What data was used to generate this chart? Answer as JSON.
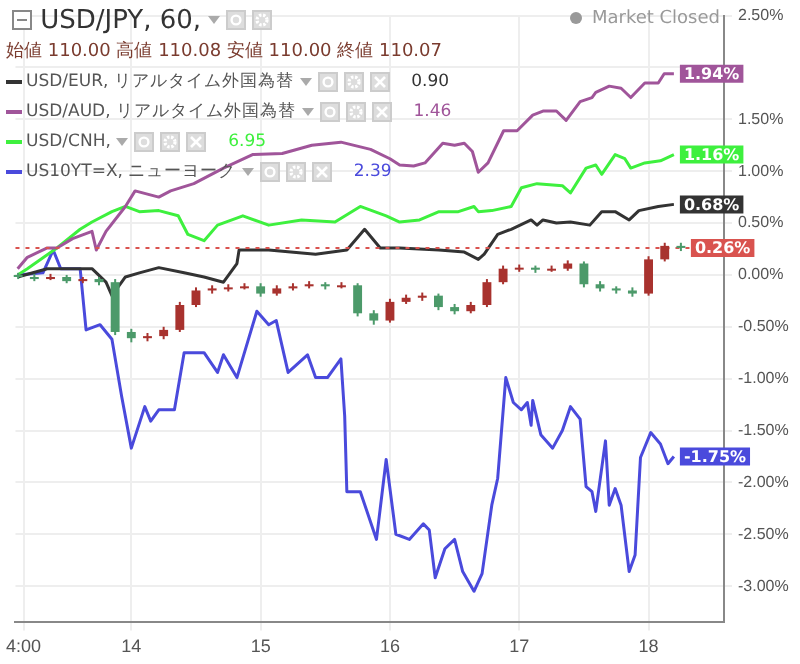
{
  "chart_data": {
    "type": "candlestick",
    "title": "USD/JPY, 60,",
    "subtitle": "始値 110.00 高値 110.08 安値 110.00 終値 110.07",
    "annotations": [
      "0.90",
      "1.46",
      "6.95",
      "2.39",
      "Market Closed"
    ],
    "xlim": [
      "--01-13T02:30",
      "--01-18T14:00"
    ],
    "xticks": [
      {
        "value": "--01-13T04:00",
        "label": "4:00"
      },
      {
        "value": "--01-14T00:00",
        "label": "14"
      },
      {
        "value": "--01-15T00:00",
        "label": "15"
      },
      {
        "value": "--01-16T00:00",
        "label": "16"
      },
      {
        "value": "--01-17T00:00",
        "label": "17"
      },
      {
        "value": "--01-18T00:00",
        "label": "18"
      }
    ],
    "ylim": [
      -3.35,
      2.5
    ],
    "yticks": [
      {
        "value": 2.5,
        "label": "2.50%"
      },
      {
        "value": 2,
        "label": null
      },
      {
        "value": 1.5,
        "label": "1.50%"
      },
      {
        "value": 1,
        "label": "1.00%"
      },
      {
        "value": 0.5,
        "label": "0.50%"
      },
      {
        "value": 0,
        "label": "0.00%"
      },
      {
        "value": -0.5,
        "label": "-0.50%"
      },
      {
        "value": -1,
        "label": "-1.00%"
      },
      {
        "value": -1.5,
        "label": "-1.50%"
      },
      {
        "value": -2,
        "label": "-2.00%"
      },
      {
        "value": -2.5,
        "label": "-2.50%"
      },
      {
        "value": -3,
        "label": "-3.00%"
      }
    ],
    "grid": true,
    "legend": "top left",
    "marker": "none",
    "line_style": "solid",
    "ref_lines": [
      {
        "axis": "y",
        "value": 0.26,
        "color": "#d9534f",
        "line_style": "dotted"
      }
    ],
    "series": [
      {
        "type": "candlestick",
        "color": "#d9534f",
        "x": [
          "--01-13T03:00",
          "--01-13T06:00",
          "--01-13T09:00",
          "--01-13T12:00",
          "--01-13T15:00",
          "--01-13T18:00",
          "--01-13T21:00",
          "--01-14T00:00",
          "--01-14T03:00",
          "--01-14T06:00",
          "--01-14T09:00",
          "--01-14T12:00",
          "--01-14T15:00",
          "--01-14T18:00",
          "--01-14T21:00",
          "--01-15T00:00",
          "--01-15T03:00",
          "--01-15T06:00",
          "--01-15T09:00",
          "--01-15T12:00",
          "--01-15T15:00",
          "--01-15T18:00",
          "--01-15T21:00",
          "--01-16T00:00",
          "--01-16T03:00",
          "--01-16T06:00",
          "--01-16T09:00",
          "--01-16T12:00",
          "--01-16T15:00",
          "--01-16T18:00",
          "--01-16T21:00",
          "--01-17T00:00",
          "--01-17T03:00",
          "--01-17T06:00",
          "--01-17T09:00",
          "--01-17T12:00",
          "--01-17T15:00",
          "--01-17T18:00",
          "--01-17T21:00",
          "--01-18T00:00",
          "--01-18T03:00",
          "--01-18T06:00"
        ],
        "ohlc": [
          [
            0,
            0.02,
            -0.04,
            -0.02
          ],
          [
            -0.02,
            0.01,
            -0.06,
            -0.04
          ],
          [
            -0.04,
            0.01,
            -0.05,
            -0.02
          ],
          [
            -0.02,
            0,
            -0.08,
            -0.06
          ],
          [
            -0.06,
            -0.02,
            -0.08,
            -0.04
          ],
          [
            -0.04,
            -0.02,
            -0.1,
            -0.07
          ],
          [
            -0.07,
            -0.04,
            -0.58,
            -0.55
          ],
          [
            -0.55,
            -0.52,
            -0.65,
            -0.61
          ],
          [
            -0.61,
            -0.56,
            -0.64,
            -0.59
          ],
          [
            -0.59,
            -0.5,
            -0.62,
            -0.53
          ],
          [
            -0.53,
            -0.26,
            -0.55,
            -0.29
          ],
          [
            -0.29,
            -0.12,
            -0.31,
            -0.15
          ],
          [
            -0.15,
            -0.1,
            -0.18,
            -0.13
          ],
          [
            -0.13,
            -0.09,
            -0.16,
            -0.12
          ],
          [
            -0.12,
            -0.08,
            -0.14,
            -0.11
          ],
          [
            -0.11,
            -0.08,
            -0.21,
            -0.18
          ],
          [
            -0.18,
            -0.1,
            -0.2,
            -0.13
          ],
          [
            -0.13,
            -0.08,
            -0.15,
            -0.11
          ],
          [
            -0.11,
            -0.06,
            -0.13,
            -0.09
          ],
          [
            -0.09,
            -0.07,
            -0.14,
            -0.11
          ],
          [
            -0.11,
            -0.07,
            -0.13,
            -0.1
          ],
          [
            -0.1,
            -0.08,
            -0.4,
            -0.37
          ],
          [
            -0.37,
            -0.34,
            -0.48,
            -0.44
          ],
          [
            -0.44,
            -0.23,
            -0.46,
            -0.26
          ],
          [
            -0.26,
            -0.19,
            -0.28,
            -0.22
          ],
          [
            -0.22,
            -0.17,
            -0.25,
            -0.2
          ],
          [
            -0.2,
            -0.18,
            -0.34,
            -0.31
          ],
          [
            -0.31,
            -0.28,
            -0.38,
            -0.35
          ],
          [
            -0.35,
            -0.26,
            -0.37,
            -0.29
          ],
          [
            -0.29,
            -0.04,
            -0.31,
            -0.07
          ],
          [
            -0.07,
            0.09,
            -0.09,
            0.06
          ],
          [
            0.06,
            0.1,
            0.03,
            0.07
          ],
          [
            0.07,
            0.09,
            0.02,
            0.05
          ],
          [
            0.05,
            0.09,
            0.03,
            0.06
          ],
          [
            0.06,
            0.14,
            0.04,
            0.11
          ],
          [
            0.11,
            0.13,
            -0.12,
            -0.09
          ],
          [
            -0.09,
            -0.06,
            -0.16,
            -0.13
          ],
          [
            -0.13,
            -0.11,
            -0.18,
            -0.15
          ],
          [
            -0.15,
            -0.12,
            -0.21,
            -0.18
          ],
          [
            -0.18,
            0.18,
            -0.2,
            0.15
          ],
          [
            0.15,
            0.31,
            0.13,
            0.28
          ],
          [
            0.28,
            0.31,
            0.23,
            0.26
          ]
        ],
        "colors": [
          "#4c9a6a",
          "#4c9a6a",
          "#a8322e",
          "#4c9a6a",
          "#a8322e",
          "#4c9a6a",
          "#4c9a6a",
          "#4c9a6a",
          "#a8322e",
          "#a8322e",
          "#a8322e",
          "#a8322e",
          "#a8322e",
          "#a8322e",
          "#a8322e",
          "#4c9a6a",
          "#a8322e",
          "#a8322e",
          "#a8322e",
          "#4c9a6a",
          "#a8322e",
          "#4c9a6a",
          "#4c9a6a",
          "#a8322e",
          "#a8322e",
          "#a8322e",
          "#4c9a6a",
          "#4c9a6a",
          "#a8322e",
          "#a8322e",
          "#a8322e",
          "#a8322e",
          "#4c9a6a",
          "#a8322e",
          "#a8322e",
          "#4c9a6a",
          "#4c9a6a",
          "#4c9a6a",
          "#4c9a6a",
          "#a8322e",
          "#a8322e",
          "#4c9a6a"
        ],
        "value_labels": [
          null,
          null,
          null,
          null,
          null,
          null,
          null,
          null,
          null,
          null,
          null,
          null,
          null,
          null,
          null,
          null,
          null,
          null,
          null,
          null,
          null,
          null,
          null,
          null,
          null,
          null,
          null,
          null,
          null,
          null,
          null,
          null,
          null,
          null,
          null,
          null,
          null,
          null,
          null,
          null,
          null,
          "0.26%"
        ]
      },
      {
        "type": "line",
        "name": "USD/EUR, リアルタイム外国為替",
        "color": "#333333",
        "x": [
          "--01-13T02:54",
          "--01-13T08:24",
          "--01-13T14:30",
          "--01-13T16:42",
          "--01-13T19:18",
          "--01-13T20:24",
          "--01-13T22:54",
          "--01-14T01:30",
          "--01-14T05:06",
          "--01-14T09:48",
          "--01-14T13:30",
          "--01-14T17:06",
          "--01-14T19:36",
          "--01-14T20:00",
          "--01-15T01:30",
          "--01-15T10:12",
          "--01-15T16:00",
          "--01-15T19:18",
          "--01-15T22:12",
          "--01-16T01:48",
          "--01-16T09:06",
          "--01-16T13:48",
          "--01-16T16:24",
          "--01-16T17:30",
          "--01-16T20:00",
          "--01-16T22:30",
          "--01-17T02:12",
          "--01-17T03:18",
          "--01-17T04:24",
          "--01-17T06:54",
          "--01-17T09:30",
          "--01-17T13:06",
          "--01-17T15:18",
          "--01-17T17:48",
          "--01-17T20:24",
          "--01-17T22:12",
          "--01-18T01:48",
          "--01-18T04:42"
        ],
        "values": [
          -0.02,
          0.06,
          0.06,
          0.06,
          -0.07,
          -0.2,
          -0.02,
          0.02,
          0.07,
          0.02,
          -0.02,
          -0.07,
          0.11,
          0.24,
          0.24,
          0.2,
          0.24,
          0.44,
          0.26,
          0.26,
          0.24,
          0.22,
          0.15,
          0.2,
          0.39,
          0.44,
          0.53,
          0.48,
          0.53,
          0.5,
          0.51,
          0.48,
          0.61,
          0.61,
          0.53,
          0.62,
          0.66,
          0.68
        ],
        "value_labels": [
          null,
          null,
          null,
          null,
          null,
          null,
          null,
          null,
          null,
          null,
          null,
          null,
          null,
          null,
          null,
          null,
          null,
          null,
          null,
          null,
          null,
          null,
          null,
          null,
          null,
          null,
          null,
          null,
          null,
          null,
          null,
          null,
          null,
          null,
          null,
          null,
          null,
          "0.68%"
        ]
      },
      {
        "type": "line",
        "name": "USD/AUD, リアルタイム外国為替",
        "color": "#a0559a",
        "x": [
          "--01-13T02:54",
          "--01-13T04:42",
          "--01-13T08:24",
          "--01-13T10:12",
          "--01-13T13:06",
          "--01-13T16:42",
          "--01-13T17:30",
          "--01-13T19:18",
          "--01-13T22:54",
          "--01-14T00:42",
          "--01-14T05:06",
          "--01-14T07:18",
          "--01-14T11:36",
          "--01-14T17:06",
          "--01-14T22:30",
          "--01-15T04:00",
          "--01-15T09:30",
          "--01-15T14:54",
          "--01-15T20:24",
          "--01-16T00:00",
          "--01-16T01:48",
          "--01-16T04:24",
          "--01-16T06:30",
          "--01-16T09:48",
          "--01-16T12:00",
          "--01-16T13:48",
          "--01-16T15:18",
          "--01-16T16:24",
          "--01-16T18:12",
          "--01-16T21:06",
          "--01-16T23:36",
          "--01-17T02:30",
          "--01-17T04:24",
          "--01-17T06:54",
          "--01-17T08:42",
          "--01-17T11:18",
          "--01-17T13:30",
          "--01-17T14:12",
          "--01-17T16:42",
          "--01-17T18:54",
          "--01-17T20:42",
          "--01-17T23:18",
          "--01-18T01:48",
          "--01-18T02:54",
          "--01-18T04:42"
        ],
        "values": [
          0.06,
          0.17,
          0.26,
          0.26,
          0.35,
          0.42,
          0.24,
          0.42,
          0.66,
          0.81,
          0.75,
          0.81,
          0.88,
          1.03,
          1.16,
          1.17,
          1.25,
          1.28,
          1.21,
          1.12,
          1.06,
          1.05,
          1.08,
          1.27,
          1.25,
          1.27,
          1.19,
          0.99,
          1.08,
          1.39,
          1.39,
          1.54,
          1.58,
          1.58,
          1.49,
          1.67,
          1.71,
          1.76,
          1.82,
          1.8,
          1.71,
          1.85,
          1.85,
          1.94,
          1.94
        ],
        "value_labels": [
          null,
          null,
          null,
          null,
          null,
          null,
          null,
          null,
          null,
          null,
          null,
          null,
          null,
          null,
          null,
          null,
          null,
          null,
          null,
          null,
          null,
          null,
          null,
          null,
          null,
          null,
          null,
          null,
          null,
          null,
          null,
          null,
          null,
          null,
          null,
          null,
          null,
          null,
          null,
          null,
          null,
          null,
          null,
          null,
          "1.94%"
        ]
      },
      {
        "type": "line",
        "name": "USD/CNH,",
        "color": "#3ef03e",
        "x": [
          "--01-13T02:54",
          "--01-13T04:42",
          "--01-13T10:12",
          "--01-13T14:30",
          "--01-13T16:42",
          "--01-13T20:24",
          "--01-13T22:54",
          "--01-14T01:30",
          "--01-14T05:06",
          "--01-14T08:42",
          "--01-14T10:30",
          "--01-14T13:30",
          "--01-14T16:00",
          "--01-14T20:42",
          "--01-15T01:30",
          "--01-15T07:36",
          "--01-15T13:48",
          "--01-15T18:30",
          "--01-15T23:18",
          "--01-16T01:48",
          "--01-16T05:30",
          "--01-16T09:06",
          "--01-16T12:42",
          "--01-16T15:36",
          "--01-16T16:24",
          "--01-16T18:54",
          "--01-16T22:30",
          "--01-17T00:24",
          "--01-17T03:18",
          "--01-17T08:00",
          "--01-17T09:30",
          "--01-17T12:24",
          "--01-17T14:12",
          "--01-17T15:18",
          "--01-17T17:48",
          "--01-17T19:36",
          "--01-17T20:42",
          "--01-17T23:18",
          "--01-18T02:12",
          "--01-18T04:42"
        ],
        "values": [
          0,
          0.06,
          0.26,
          0.44,
          0.51,
          0.61,
          0.66,
          0.61,
          0.62,
          0.57,
          0.39,
          0.33,
          0.48,
          0.57,
          0.48,
          0.53,
          0.51,
          0.66,
          0.57,
          0.51,
          0.53,
          0.61,
          0.61,
          0.66,
          0.61,
          0.62,
          0.66,
          0.84,
          0.88,
          0.86,
          0.79,
          1.03,
          1.06,
          0.97,
          1.16,
          1.12,
          1.03,
          1.08,
          1.1,
          1.16
        ],
        "value_labels": [
          null,
          null,
          null,
          null,
          null,
          null,
          null,
          null,
          null,
          null,
          null,
          null,
          null,
          null,
          null,
          null,
          null,
          null,
          null,
          null,
          null,
          null,
          null,
          null,
          null,
          null,
          null,
          null,
          null,
          null,
          null,
          null,
          null,
          null,
          null,
          null,
          null,
          null,
          null,
          "1.16%"
        ]
      },
      {
        "type": "line",
        "name": "US10YT=X, ニューヨーク",
        "color": "#4a4adc",
        "x": [
          "--01-13T02:54",
          "--01-13T07:36",
          "--01-13T09:30",
          "--01-13T10:54",
          "--01-13T14:30",
          "--01-13T15:36",
          "--01-13T18:12",
          "--01-13T20:24",
          "--01-13T22:12",
          "--01-14T00:00",
          "--01-14T02:30",
          "--01-14T03:36",
          "--01-14T05:06",
          "--01-14T08:00",
          "--01-14T09:48",
          "--01-14T13:30",
          "--01-14T16:00",
          "--01-14T17:06",
          "--01-14T19:36",
          "--01-14T23:18",
          "--01-15T01:30",
          "--01-15T02:54",
          "--01-15T05:06",
          "--01-15T08:42",
          "--01-15T10:12",
          "--01-15T12:24",
          "--01-15T14:54",
          "--01-15T15:36",
          "--01-15T16:00",
          "--01-15T18:30",
          "--01-15T21:30",
          "--01-15T23:18",
          "--01-16T01:06",
          "--01-16T03:36",
          "--01-16T06:12",
          "--01-16T07:18",
          "--01-16T08:24",
          "--01-16T10:12",
          "--01-16T12:00",
          "--01-16T13:30",
          "--01-16T15:36",
          "--01-16T17:06",
          "--01-16T18:54",
          "--01-16T20:00",
          "--01-16T21:30",
          "--01-16T22:54",
          "--01-17T00:24",
          "--01-17T01:30",
          "--01-17T02:12",
          "--01-17T02:30",
          "--01-17T04:00",
          "--01-17T06:12",
          "--01-17T08:00",
          "--01-17T09:30",
          "--01-17T11:18",
          "--01-17T12:24",
          "--01-17T13:30",
          "--01-17T14:12",
          "--01-17T16:00",
          "--01-17T16:42",
          "--01-17T17:48",
          "--01-17T18:54",
          "--01-17T20:24",
          "--01-17T21:30",
          "--01-17T22:30",
          "--01-18T00:24",
          "--01-18T02:12",
          "--01-18T03:36",
          "--01-18T04:42"
        ],
        "values": [
          0,
          0.02,
          0.24,
          0.06,
          0.06,
          -0.53,
          -0.48,
          -0.62,
          -1.17,
          -1.67,
          -1.27,
          -1.41,
          -1.3,
          -1.3,
          -0.75,
          -0.75,
          -0.94,
          -0.77,
          -0.99,
          -0.35,
          -0.48,
          -0.44,
          -0.94,
          -0.77,
          -0.99,
          -0.99,
          -0.81,
          -1.36,
          -2.09,
          -2.09,
          -2.55,
          -1.78,
          -2.5,
          -2.55,
          -2.4,
          -2.46,
          -2.92,
          -2.64,
          -2.55,
          -2.86,
          -3.05,
          -2.88,
          -2.22,
          -1.96,
          -0.99,
          -1.23,
          -1.3,
          -1.23,
          -1.45,
          -1.21,
          -1.54,
          -1.67,
          -1.5,
          -1.27,
          -1.39,
          -2.04,
          -2.09,
          -2.28,
          -1.6,
          -2.22,
          -2.06,
          -2.22,
          -2.86,
          -2.7,
          -1.76,
          -1.52,
          -1.63,
          -1.82,
          -1.75
        ],
        "value_labels": [
          null,
          null,
          null,
          null,
          null,
          null,
          null,
          null,
          null,
          null,
          null,
          null,
          null,
          null,
          null,
          null,
          null,
          null,
          null,
          null,
          null,
          null,
          null,
          null,
          null,
          null,
          null,
          null,
          null,
          null,
          null,
          null,
          null,
          null,
          null,
          null,
          null,
          null,
          null,
          null,
          null,
          null,
          null,
          null,
          null,
          null,
          null,
          null,
          null,
          null,
          null,
          null,
          null,
          null,
          null,
          null,
          null,
          null,
          null,
          null,
          null,
          null,
          null,
          null,
          null,
          null,
          null,
          null,
          "-1.75%"
        ]
      }
    ]
  }
}
